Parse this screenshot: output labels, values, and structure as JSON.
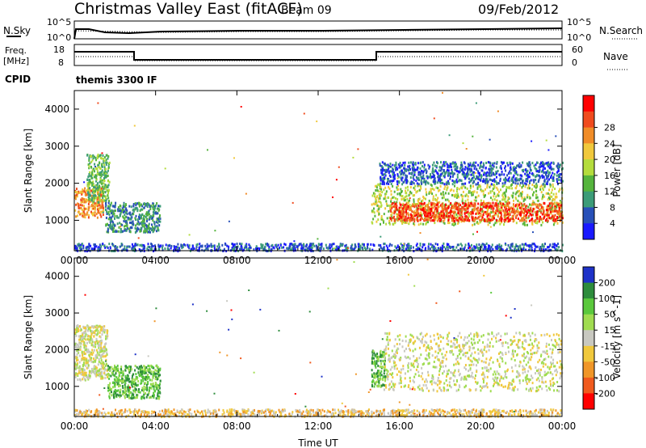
{
  "header": {
    "station": "Christmas Valley East (fitACF)",
    "beam": "Beam 09",
    "date": "09/Feb/2012"
  },
  "strip_panels": {
    "nsky_label": "N.Sky",
    "nsky_ticks": [
      "10^5",
      "10^0"
    ],
    "nsearch_label": "N.Search",
    "nsearch_ticks": [
      "10^5",
      "10^0"
    ],
    "freq_label_1": "Freq.",
    "freq_label_2": "[MHz]",
    "freq_ticks": [
      "18",
      "8"
    ],
    "nave_label": "Nave",
    "nave_ticks": [
      "60",
      "0"
    ],
    "cpid_label": "CPID",
    "cpid_value": "themis 3300 IF"
  },
  "chart_data": [
    {
      "type": "heatmap",
      "name": "power",
      "ylabel": "Slant Range [km]",
      "xlabel": "",
      "x_tick_labels": [
        "00:00",
        "04:00",
        "08:00",
        "12:00",
        "16:00",
        "20:00",
        "00:00"
      ],
      "y_ticks": [
        1000,
        2000,
        3000,
        4000
      ],
      "xlim_hours": [
        0,
        24
      ],
      "ylim": [
        180,
        4500
      ],
      "colorbar_label": "Power [dB]",
      "colorbar_ticks": [
        "4",
        "8",
        "12",
        "16",
        "20",
        "24",
        "28"
      ],
      "colorbar_colors": [
        "#1919ff",
        "#2850b8",
        "#3c9c78",
        "#55b43c",
        "#b4dc3c",
        "#f0c83c",
        "#f08c28",
        "#f04b1e",
        "#ff0000"
      ],
      "blobs": [
        {
          "t": [
            0.0,
            1.4
          ],
          "r": [
            1100,
            1900
          ],
          "level": 6
        },
        {
          "t": [
            0.6,
            1.7
          ],
          "r": [
            1500,
            2800
          ],
          "level": 3
        },
        {
          "t": [
            1.5,
            4.2
          ],
          "r": [
            700,
            1500
          ],
          "level": 2
        },
        {
          "t": [
            14.6,
            24.0
          ],
          "r": [
            900,
            2000
          ],
          "level": 4
        },
        {
          "t": [
            15.5,
            24.0
          ],
          "r": [
            1000,
            1500
          ],
          "level": 7
        },
        {
          "t": [
            15.0,
            24.0
          ],
          "r": [
            2000,
            2600
          ],
          "level": 1
        },
        {
          "t": [
            0.0,
            24.0
          ],
          "r": [
            200,
            400
          ],
          "level": 1
        }
      ]
    },
    {
      "type": "heatmap",
      "name": "velocity",
      "ylabel": "Slant Range [km]",
      "xlabel": "Time UT",
      "x_tick_labels": [
        "00:00",
        "04:00",
        "08:00",
        "12:00",
        "16:00",
        "20:00",
        "00:00"
      ],
      "y_ticks": [
        1000,
        2000,
        3000,
        4000
      ],
      "xlim_hours": [
        0,
        24
      ],
      "ylim": [
        180,
        4500
      ],
      "colorbar_label": "Velocity [m s^-1]",
      "colorbar_ticks": [
        "200",
        "100",
        "50",
        "15",
        "-15",
        "-50",
        "-100",
        "-200"
      ],
      "colorbar_colors": [
        "#1e32c8",
        "#2d8c3c",
        "#5ac83c",
        "#a0dc50",
        "#c8c8c0",
        "#f0c83c",
        "#f09628",
        "#f05a1e",
        "#ff0000"
      ],
      "blobs": [
        {
          "t": [
            0.0,
            1.6
          ],
          "r": [
            1200,
            2700
          ],
          "level": 4
        },
        {
          "t": [
            1.6,
            4.2
          ],
          "r": [
            700,
            1600
          ],
          "level": 2
        },
        {
          "t": [
            14.6,
            15.3
          ],
          "r": [
            1000,
            2000
          ],
          "level": 2
        },
        {
          "t": [
            15.2,
            24.0
          ],
          "r": [
            900,
            2500
          ],
          "level": 4
        },
        {
          "t": [
            0.0,
            24.0
          ],
          "r": [
            200,
            400
          ],
          "level": 5
        }
      ]
    }
  ]
}
